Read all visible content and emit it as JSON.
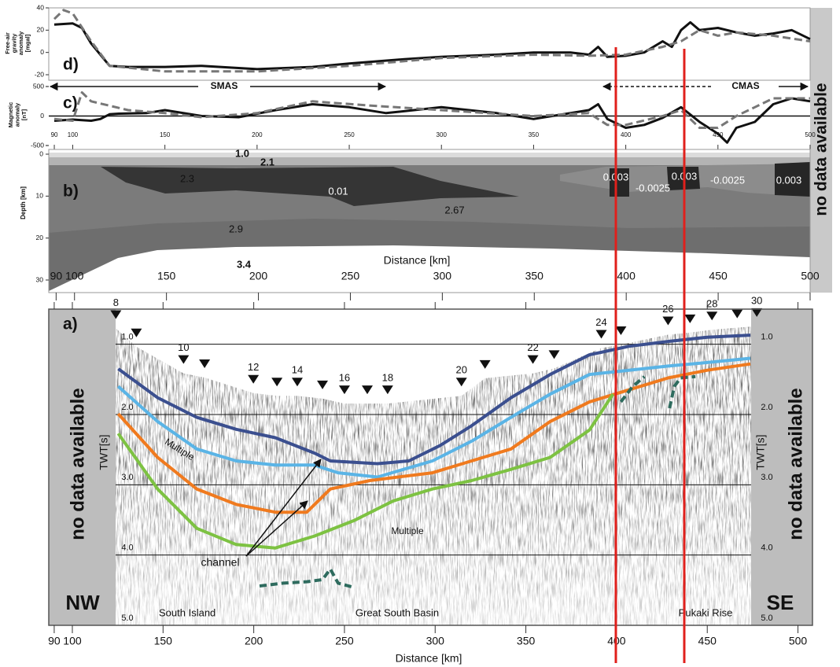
{
  "chart_data": [
    {
      "type": "line",
      "panel_label": "d)",
      "ylabel": [
        "Free-air",
        "gravity",
        "anomaly",
        "[mgal]"
      ],
      "xlim": [
        87,
        500
      ],
      "ylim": [
        -20,
        40
      ],
      "yticks": [
        -20,
        0,
        20,
        40
      ],
      "series": [
        {
          "color": "#111111",
          "style": "solid",
          "x": [
            90,
            100,
            105,
            110,
            120,
            130,
            150,
            170,
            200,
            230,
            250,
            280,
            300,
            330,
            350,
            370,
            380,
            385,
            390,
            400,
            410,
            420,
            425,
            430,
            435,
            440,
            450,
            460,
            470,
            480,
            490,
            500
          ],
          "values": [
            25,
            26,
            22,
            8,
            -12,
            -13,
            -13,
            -12,
            -15,
            -13,
            -10,
            -6,
            -4,
            -2,
            0,
            0,
            -2,
            5,
            -4,
            -3,
            0,
            10,
            5,
            20,
            27,
            20,
            22,
            18,
            15,
            17,
            20,
            12
          ]
        },
        {
          "color": "#777777",
          "style": "dashed",
          "x": [
            90,
            95,
            100,
            110,
            120,
            150,
            200,
            250,
            300,
            350,
            380,
            400,
            420,
            430,
            440,
            450,
            460,
            480,
            500
          ],
          "values": [
            30,
            38,
            35,
            10,
            -12,
            -17,
            -17,
            -12,
            -5,
            -2,
            -3,
            -2,
            5,
            10,
            20,
            15,
            18,
            15,
            10
          ]
        }
      ]
    },
    {
      "type": "line",
      "panel_label": "c)",
      "ylabel": [
        "Magnetic",
        "anomaly",
        "[nT]"
      ],
      "xlim": [
        87,
        500
      ],
      "ylim": [
        -500,
        500
      ],
      "yticks": [
        -500,
        0,
        500
      ],
      "xticks": [
        90,
        100,
        150,
        200,
        250,
        300,
        350,
        400,
        450,
        500
      ],
      "annotations": [
        "SMAS",
        "CMAS"
      ],
      "series": [
        {
          "color": "#111111",
          "style": "solid",
          "x": [
            90,
            100,
            110,
            115,
            120,
            125,
            140,
            150,
            170,
            190,
            210,
            230,
            250,
            270,
            300,
            330,
            350,
            380,
            385,
            390,
            400,
            410,
            420,
            430,
            440,
            450,
            455,
            460,
            470,
            480,
            490,
            500
          ],
          "values": [
            -80,
            -60,
            -80,
            -50,
            30,
            40,
            50,
            100,
            0,
            -20,
            100,
            200,
            150,
            50,
            150,
            50,
            -50,
            100,
            200,
            -50,
            -200,
            -150,
            -30,
            150,
            -100,
            -300,
            -450,
            -200,
            -100,
            200,
            300,
            250
          ]
        },
        {
          "color": "#777777",
          "style": "dashed",
          "x": [
            90,
            100,
            105,
            110,
            130,
            150,
            170,
            200,
            230,
            260,
            300,
            350,
            380,
            390,
            400,
            420,
            430,
            440,
            450,
            460,
            470,
            480,
            500
          ],
          "values": [
            -50,
            -80,
            400,
            250,
            100,
            50,
            -20,
            50,
            250,
            180,
            100,
            0,
            50,
            -150,
            -150,
            0,
            100,
            -200,
            -200,
            0,
            150,
            300,
            300
          ]
        }
      ]
    },
    {
      "type": "model",
      "panel_label": "b)",
      "ylabel": "Depth [km]",
      "xlabel": "Distance [km]",
      "xlim": [
        86,
        500
      ],
      "ylim": [
        0,
        30
      ],
      "yaxis_reversed": true,
      "yticks": [
        0,
        10,
        20,
        30
      ],
      "xticks": [
        90,
        100,
        150,
        200,
        250,
        300,
        350,
        400,
        450,
        500
      ],
      "regions": [
        "1.0",
        "2.1",
        "2.3",
        "0.01",
        "2.67",
        "2.9",
        "3.4",
        "0.003",
        "-0.0025",
        "0.003",
        "-0.0025",
        "0.003"
      ],
      "side_label": "no data available"
    },
    {
      "type": "seismic",
      "panel_label": "a)",
      "ylabel": "TWT[s]",
      "xlabel": "Distance [km]",
      "xlim": [
        87,
        508
      ],
      "ylim": [
        0.5,
        5.0
      ],
      "yaxis_reversed": true,
      "yticks": [
        {
          "value": 1,
          "label": "1.0"
        },
        {
          "value": 2,
          "label": "2.0"
        },
        {
          "value": 3,
          "label": "3.0"
        },
        {
          "value": 4,
          "label": "4.0"
        },
        {
          "value": 5,
          "label": "5.0"
        }
      ],
      "xticks": [
        90,
        100,
        150,
        200,
        250,
        300,
        350,
        400,
        450,
        500
      ],
      "shotpoints": {
        "x": [
          124,
          135.3,
          161.3,
          172.9,
          199.8,
          212.8,
          224,
          237.9,
          250,
          262.6,
          273.8,
          314.5,
          327.5,
          353.9,
          365.6,
          391.6,
          402.4,
          428.4,
          440.5,
          452.6,
          466.5,
          477.3
        ],
        "twt": [
          0.64,
          0.9,
          1.28,
          1.34,
          1.56,
          1.6,
          1.6,
          1.64,
          1.71,
          1.71,
          1.71,
          1.6,
          1.35,
          1.28,
          1.21,
          0.92,
          0.87,
          0.73,
          0.7,
          0.66,
          0.63,
          0.61
        ],
        "labels": [
          8,
          null,
          10,
          null,
          12,
          null,
          14,
          null,
          16,
          null,
          18,
          20,
          null,
          22,
          null,
          24,
          null,
          26,
          null,
          28,
          null,
          30
        ]
      },
      "horizons": [
        {
          "color": "#3b4f8f",
          "style": "solid",
          "x": [
            125.3,
            147,
            168.6,
            190.3,
            211.9,
            233.5,
            242.2,
            268.2,
            285.5,
            302.8,
            320.1,
            341.8,
            363.4,
            385.1,
            406.7,
            428.4,
            450,
            473.8
          ],
          "values": [
            1.35,
            1.76,
            2.04,
            2.21,
            2.33,
            2.55,
            2.66,
            2.7,
            2.66,
            2.44,
            2.16,
            1.76,
            1.43,
            1.15,
            1.03,
            0.96,
            0.9,
            0.87
          ]
        },
        {
          "color": "#5ab4e6",
          "style": "solid",
          "x": [
            125.3,
            147,
            168.6,
            190.3,
            211.9,
            233.5,
            246.5,
            268.2,
            298.5,
            320.1,
            341.8,
            363.4,
            385.1,
            406.7,
            428.4,
            450,
            473.8
          ],
          "values": [
            1.6,
            2.1,
            2.49,
            2.66,
            2.72,
            2.72,
            2.83,
            2.89,
            2.66,
            2.38,
            2.04,
            1.71,
            1.43,
            1.37,
            1.31,
            1.26,
            1.2
          ]
        },
        {
          "color": "#f07a1e",
          "style": "solid",
          "x": [
            125.3,
            147,
            168.6,
            190.3,
            211.9,
            229.2,
            242.2,
            263.9,
            298.5,
            320.1,
            341.8,
            363.4,
            385.1,
            406.7,
            428.4,
            450,
            473.8
          ],
          "values": [
            1.99,
            2.61,
            3.06,
            3.28,
            3.39,
            3.39,
            3.06,
            2.94,
            2.83,
            2.66,
            2.49,
            2.1,
            1.82,
            1.65,
            1.48,
            1.37,
            1.28
          ]
        },
        {
          "color": "#7dc242",
          "style": "solid",
          "x": [
            125.3,
            147,
            168.6,
            190.3,
            211.9,
            233.5,
            255.2,
            276.8,
            298.5,
            320.1,
            341.8,
            363.4,
            385.1,
            398
          ],
          "values": [
            2.27,
            3.06,
            3.62,
            3.85,
            3.9,
            3.73,
            3.51,
            3.23,
            3.06,
            2.94,
            2.78,
            2.61,
            2.22,
            1.71
          ]
        },
        {
          "color": "#2e6b5e",
          "style": "dashed",
          "x": [
            203.2,
            216.2,
            229.2,
            237.9,
            242.2,
            246.5,
            255.2
          ],
          "values": [
            4.44,
            4.4,
            4.38,
            4.35,
            4.2,
            4.4,
            4.46
          ]
        },
        {
          "color": "#2e6b5e",
          "style": "dashed",
          "x": [
            402.4,
            408.9,
            415.4
          ],
          "values": [
            1.82,
            1.6,
            1.46
          ]
        },
        {
          "color": "#2e6b5e",
          "style": "dashed",
          "x": [
            429.2,
            431.8,
            435.3,
            443.5
          ],
          "values": [
            1.91,
            1.6,
            1.48,
            1.46
          ]
        }
      ],
      "side_label": "no data available",
      "direction_labels": [
        "NW",
        "SE"
      ],
      "place_labels": [
        "South Island",
        "Great South Basin",
        "Pukaki Rise"
      ],
      "multiple_labels": [
        "Multiple",
        "Multiple"
      ],
      "channel_label": "channel"
    }
  ]
}
